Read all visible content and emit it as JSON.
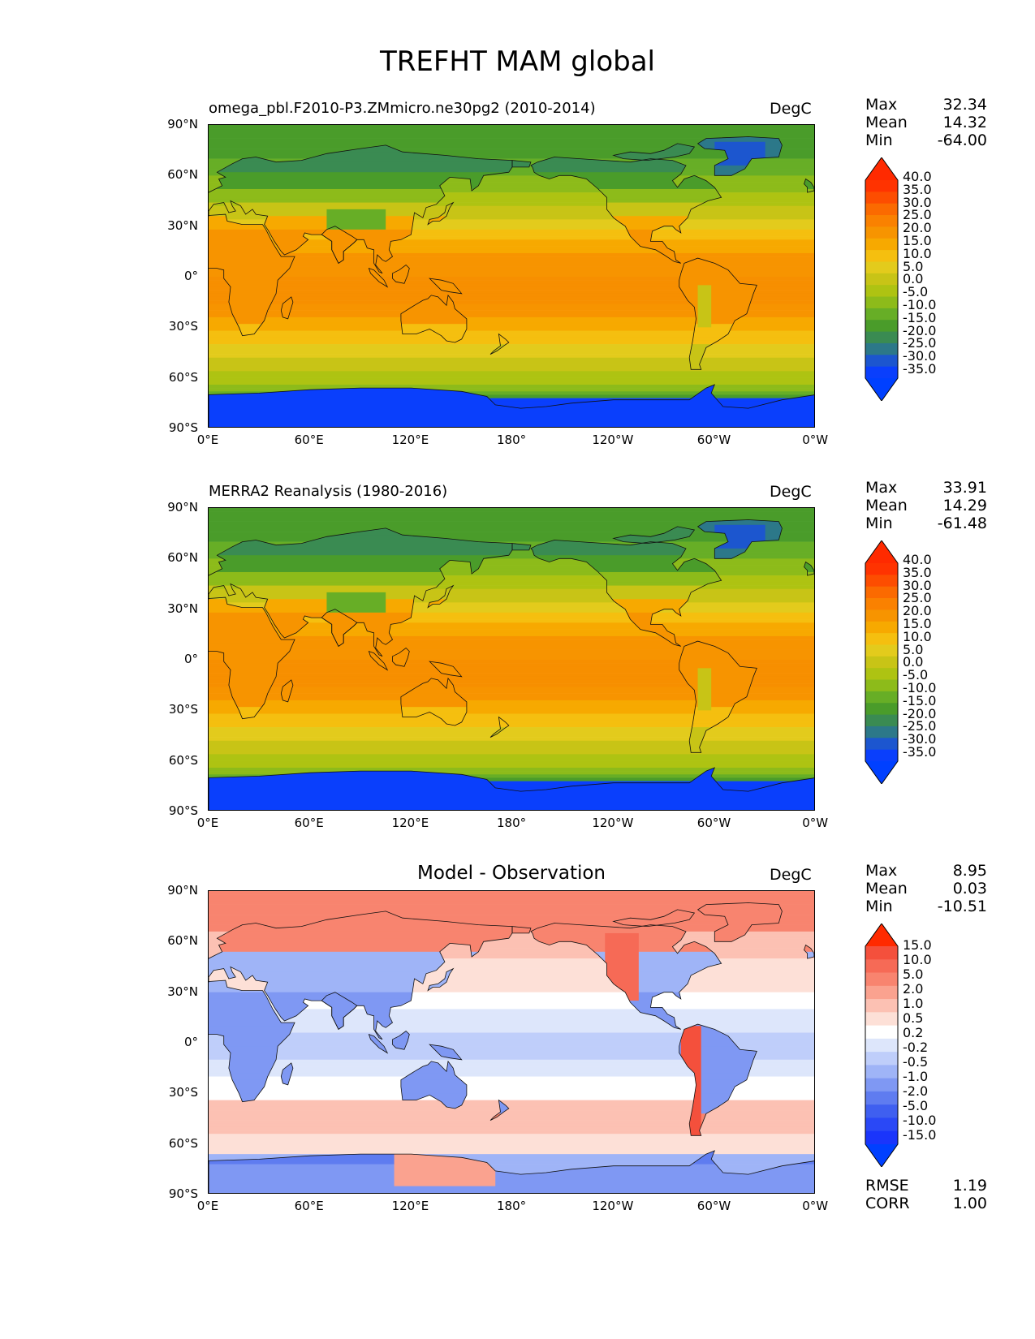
{
  "title": "TREFHT MAM global",
  "panels": [
    {
      "id": "model",
      "title": "omega_pbl.F2010-P3.ZMmicro.ne30pg2 (2010-2014)",
      "units": "DegC",
      "stats": [
        {
          "k": "Max",
          "v": "32.34"
        },
        {
          "k": "Mean",
          "v": "14.32"
        },
        {
          "k": "Min",
          "v": "-64.00"
        }
      ],
      "colorbar_labels": [
        "40.0",
        "35.0",
        "30.0",
        "25.0",
        "20.0",
        "15.0",
        "10.0",
        "5.0",
        "0.0",
        "-5.0",
        "-10.0",
        "-15.0",
        "-20.0",
        "-25.0",
        "-30.0",
        "-35.0"
      ],
      "colorbar_colors": [
        "#ff3300",
        "#fd4d00",
        "#fb6a00",
        "#fa8100",
        "#f79400",
        "#f7a900",
        "#f5bf0f",
        "#e3cb1c",
        "#c8c416",
        "#aec312",
        "#8dbb1a",
        "#67ae26",
        "#4a9c2a",
        "#3a8b52",
        "#2c7889",
        "#1c56cf",
        "#0a3ffc"
      ],
      "top_color": "#ff2a00",
      "bottom_color": "#0040ff"
    },
    {
      "id": "obs",
      "title": "MERRA2 Reanalysis (1980-2016)",
      "units": "DegC",
      "stats": [
        {
          "k": "Max",
          "v": "33.91"
        },
        {
          "k": "Mean",
          "v": "14.29"
        },
        {
          "k": "Min",
          "v": "-61.48"
        }
      ],
      "colorbar_labels": [
        "40.0",
        "35.0",
        "30.0",
        "25.0",
        "20.0",
        "15.0",
        "10.0",
        "5.0",
        "0.0",
        "-5.0",
        "-10.0",
        "-15.0",
        "-20.0",
        "-25.0",
        "-30.0",
        "-35.0"
      ],
      "colorbar_colors": [
        "#ff3300",
        "#fd4d00",
        "#fb6a00",
        "#fa8100",
        "#f79400",
        "#f7a900",
        "#f5bf0f",
        "#e3cb1c",
        "#c8c416",
        "#aec312",
        "#8dbb1a",
        "#67ae26",
        "#4a9c2a",
        "#3a8b52",
        "#2c7889",
        "#1c56cf",
        "#0a3ffc"
      ],
      "top_color": "#ff2a00",
      "bottom_color": "#0040ff"
    },
    {
      "id": "diff",
      "title": "Model - Observation",
      "units": "DegC",
      "stats": [
        {
          "k": "Max",
          "v": "8.95"
        },
        {
          "k": "Mean",
          "v": "0.03"
        },
        {
          "k": "Min",
          "v": "-10.51"
        }
      ],
      "extra_stats": [
        {
          "k": "RMSE",
          "v": "1.19"
        },
        {
          "k": "CORR",
          "v": "1.00"
        }
      ],
      "colorbar_labels": [
        "15.0",
        "10.0",
        "5.0",
        "2.0",
        "1.0",
        "0.5",
        "0.2",
        "-0.2",
        "-0.5",
        "-1.0",
        "-2.0",
        "-5.0",
        "-10.0",
        "-15.0"
      ],
      "colorbar_colors": [
        "#f4503c",
        "#f66a56",
        "#f8846f",
        "#faa28f",
        "#fcc1b3",
        "#fde0d7",
        "#ffffff",
        "#dde6fb",
        "#bfcefa",
        "#9fb4f7",
        "#7f98f3",
        "#5f7cf0",
        "#3f5ff0",
        "#2a48f6",
        "#1a35fb"
      ],
      "top_color": "#ff2a00",
      "bottom_color": "#0040ff"
    }
  ],
  "lat_ticks": [
    "90°N",
    "60°N",
    "30°N",
    "0°",
    "30°S",
    "60°S",
    "90°S"
  ],
  "lon_ticks": [
    "0°E",
    "60°E",
    "120°E",
    "180°",
    "120°W",
    "60°W",
    "0°W"
  ]
}
